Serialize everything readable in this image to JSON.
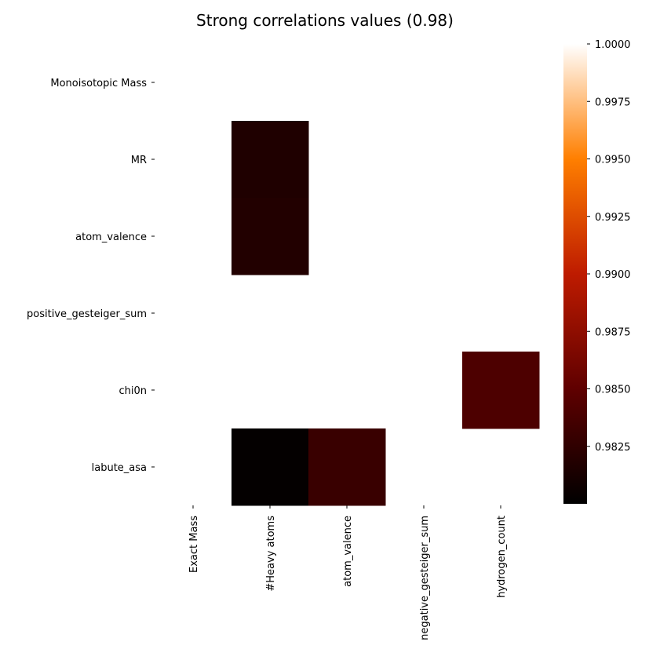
{
  "chart_data": {
    "type": "heatmap",
    "title": "Strong correlations values (0.98)",
    "rows": [
      "Monoisotopic Mass",
      "MR",
      "atom_valence",
      "positive_gesteiger_sum",
      "chi0n",
      "labute_asa"
    ],
    "columns": [
      "Exact Mass",
      "#Heavy atoms",
      "atom_valence",
      "negative_gesteiger_sum",
      "hydrogen_count"
    ],
    "values": [
      [
        null,
        null,
        null,
        null,
        null
      ],
      [
        null,
        0.9816,
        null,
        null,
        null
      ],
      [
        null,
        0.9818,
        null,
        null,
        null
      ],
      [
        null,
        null,
        null,
        null,
        null
      ],
      [
        null,
        null,
        null,
        null,
        0.984
      ],
      [
        null,
        0.9802,
        0.983,
        null,
        null
      ]
    ],
    "colorbar": {
      "colormap": "gist_heat",
      "min": 0.98,
      "max": 1.0,
      "ticks": [
        "1.0000",
        "0.9975",
        "0.9950",
        "0.9925",
        "0.9900",
        "0.9875",
        "0.9850",
        "0.9825"
      ],
      "tick_values": [
        1.0,
        0.9975,
        0.995,
        0.9925,
        0.99,
        0.9875,
        0.985,
        0.9825
      ]
    }
  }
}
